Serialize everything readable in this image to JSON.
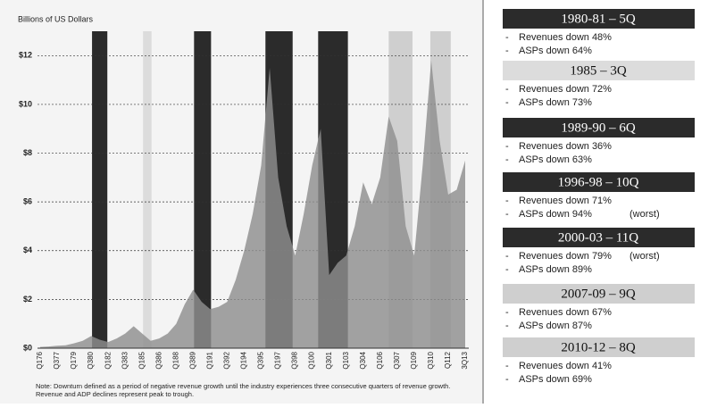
{
  "chart_data": {
    "type": "area",
    "y_label": "Billions of US Dollars",
    "note": "Note: Downturn defined as a period of negative revenue growth until the industry experiences three consecutive quarters of revenue growth. Revenue and ADP declines represent peak to trough.",
    "color": "#8f8f8f",
    "categories": [
      "Q176",
      null,
      "Q377",
      null,
      "Q179",
      null,
      "Q380",
      null,
      "Q182",
      null,
      "Q383",
      null,
      "Q185",
      null,
      "Q386",
      null,
      "Q188",
      null,
      "Q389",
      null,
      "Q191",
      null,
      "Q392",
      null,
      "Q194",
      null,
      "Q395",
      null,
      "Q197",
      null,
      "Q398",
      null,
      "Q100",
      null,
      "Q301",
      null,
      "Q103",
      null,
      "Q304",
      null,
      "Q106",
      null,
      "Q307",
      null,
      "Q109",
      null,
      "Q310",
      null,
      "Q112",
      null,
      "3Q13"
    ],
    "values": [
      0.05,
      0.07,
      0.1,
      0.12,
      0.2,
      0.3,
      0.5,
      0.35,
      0.25,
      0.4,
      0.6,
      0.9,
      0.6,
      0.3,
      0.4,
      0.6,
      1.0,
      1.8,
      2.4,
      1.9,
      1.6,
      1.7,
      1.9,
      2.8,
      4.0,
      5.5,
      7.5,
      11.5,
      7.0,
      5.0,
      3.8,
      5.5,
      7.5,
      9.0,
      3.0,
      3.5,
      3.8,
      5.0,
      6.8,
      5.9,
      7.0,
      9.5,
      8.5,
      5.0,
      3.8,
      7.5,
      11.8,
      8.5,
      6.3,
      6.5,
      7.7
    ],
    "ylim": [
      0,
      13
    ],
    "yticks": [
      {
        "value": 0,
        "label": "$0"
      },
      {
        "value": 2,
        "label": "$2"
      },
      {
        "value": 4,
        "label": "$4"
      },
      {
        "value": 6,
        "label": "$6"
      },
      {
        "value": 8,
        "label": "$8"
      },
      {
        "value": 10,
        "label": "$10"
      },
      {
        "value": 12,
        "label": "$12"
      }
    ],
    "grid": true,
    "downturns": [
      {
        "title": "1980-81  –  5Q",
        "shade": "#2b2b2b",
        "text": "#fff",
        "span": [
          6.1,
          7.9
        ],
        "items": [
          {
            "text": "Revenues down 48%"
          },
          {
            "text": "ASPs down 64%"
          }
        ]
      },
      {
        "title": "1985  –  3Q",
        "shade": "#dcdcdc",
        "text": "#111",
        "span": [
          12.1,
          13.1
        ],
        "items": [
          {
            "text": "Revenues down 72%"
          },
          {
            "text": "ASPs down 73%"
          }
        ]
      },
      {
        "title": "1989-90  –  6Q",
        "shade": "#2b2b2b",
        "text": "#fff",
        "span": [
          18.1,
          20.1
        ],
        "items": [
          {
            "text": "Revenues down 36%"
          },
          {
            "text": "ASPs down 63%"
          }
        ]
      },
      {
        "title": "1996-98  –  10Q",
        "shade": "#2b2b2b",
        "text": "#fff",
        "span": [
          26.5,
          29.7
        ],
        "items": [
          {
            "text": "Revenues down 71%"
          },
          {
            "text": "ASPs down 94%",
            "note": "(worst)"
          }
        ]
      },
      {
        "title": "2000-03  –  11Q",
        "shade": "#2b2b2b",
        "text": "#fff",
        "span": [
          32.7,
          36.2
        ],
        "items": [
          {
            "text": "Revenues down 79%",
            "note": "(worst)"
          },
          {
            "text": "ASPs down 89%"
          }
        ]
      },
      {
        "title": "2007-09  –  9Q",
        "shade": "#cfcfcf",
        "text": "#111",
        "span": [
          41.0,
          43.8
        ],
        "items": [
          {
            "text": "Revenues down 67%"
          },
          {
            "text": "ASPs down 87%"
          }
        ]
      },
      {
        "title": "2010-12  –  8Q",
        "shade": "#cfcfcf",
        "text": "#111",
        "span": [
          45.9,
          48.3
        ],
        "items": [
          {
            "text": "Revenues down 41%"
          },
          {
            "text": "ASPs down 69%"
          }
        ]
      }
    ]
  }
}
